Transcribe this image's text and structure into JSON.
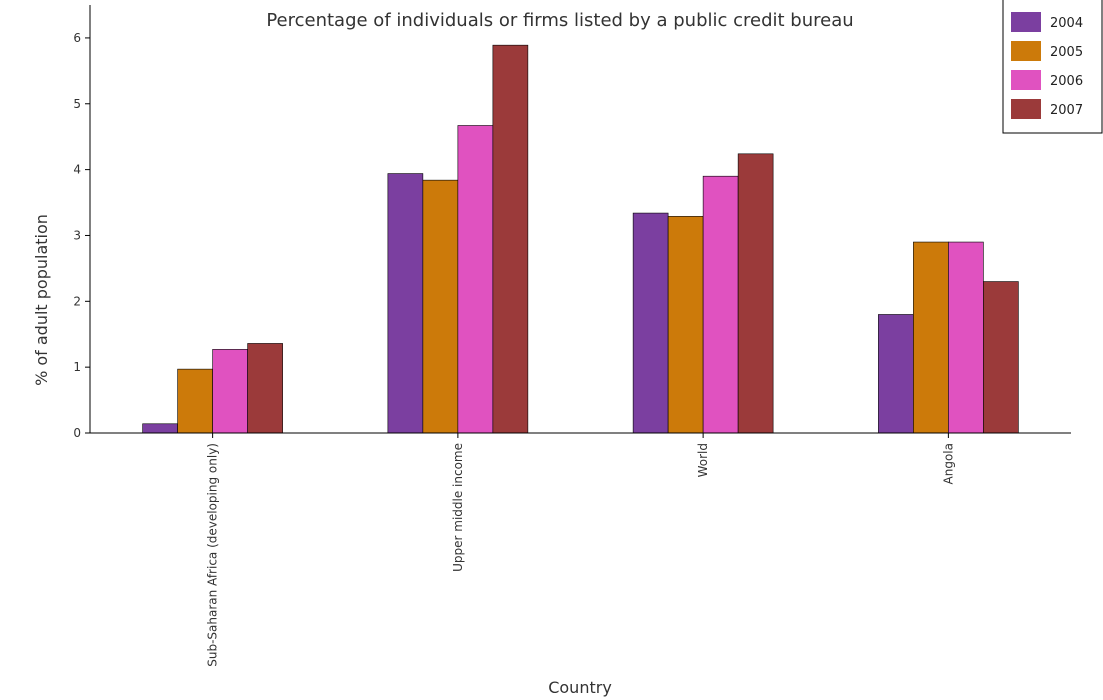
{
  "chart_data": {
    "type": "bar",
    "title": "Percentage of individuals or firms listed by a public credit bureau",
    "xlabel": "Country",
    "ylabel": "% of adult population",
    "ylim": [
      0,
      6.5
    ],
    "yticks": [
      "0",
      "1",
      "2",
      "3",
      "4",
      "5",
      "6"
    ],
    "categories": [
      "Sub-Saharan Africa (developing only)",
      "Upper middle income",
      "World",
      "Angola"
    ],
    "series": [
      {
        "name": "2004",
        "color": "#7b3fa0",
        "values": [
          0.14,
          3.94,
          3.34,
          1.8
        ]
      },
      {
        "name": "2005",
        "color": "#cc7a0a",
        "values": [
          0.97,
          3.84,
          3.29,
          2.9
        ]
      },
      {
        "name": "2006",
        "color": "#e052c0",
        "values": [
          1.27,
          4.67,
          3.9,
          2.9
        ]
      },
      {
        "name": "2007",
        "color": "#9b3a3a",
        "values": [
          1.36,
          5.89,
          4.24,
          2.3
        ]
      }
    ],
    "legend_position": "top-right",
    "grid": false
  }
}
